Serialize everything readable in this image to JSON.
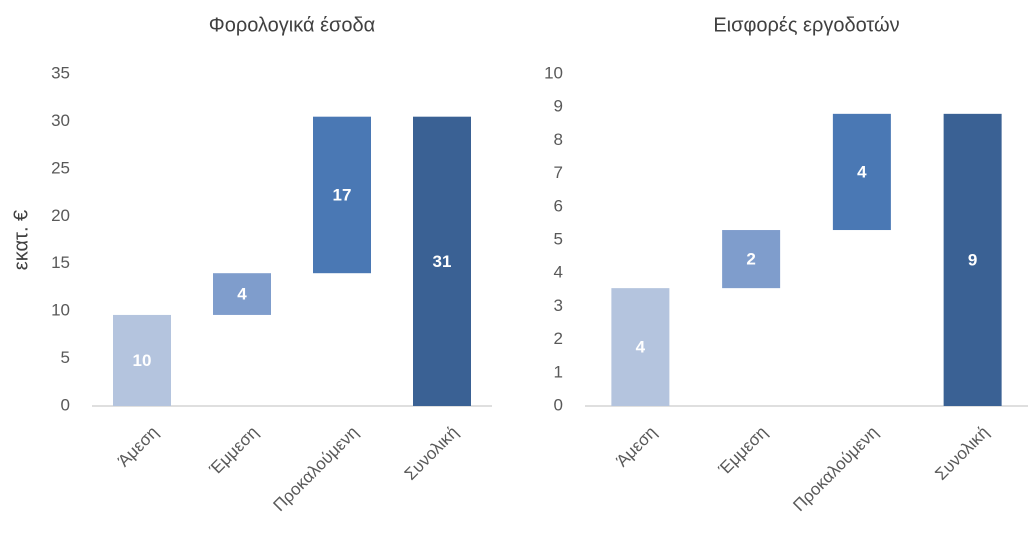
{
  "chart_data": [
    {
      "type": "waterfall",
      "title": "Φορολογικά έσοδα",
      "y_label": "εκατ. €",
      "categories": [
        "Άμεση",
        "Έμμεση",
        "Προκαλούμενη",
        "Συνολική"
      ],
      "values": [
        9.6,
        4.4,
        16.5,
        30.5
      ],
      "value_labels": [
        "10",
        "4",
        "17",
        "31"
      ],
      "colors": [
        "#b4c4de",
        "#7f9dcc",
        "#4a78b4",
        "#3a6194"
      ],
      "ylim": [
        0,
        35
      ],
      "yticks": [
        0,
        5,
        10,
        15,
        20,
        25,
        30,
        35
      ],
      "grid": false
    },
    {
      "type": "waterfall",
      "title": "Εισφορές εργοδοτών",
      "categories": [
        "Άμεση",
        "Έμμεση",
        "Προκαλούμενη",
        "Συνολική"
      ],
      "values": [
        3.55,
        1.75,
        3.5,
        8.8
      ],
      "value_labels": [
        "4",
        "2",
        "4",
        "9"
      ],
      "colors": [
        "#b4c4de",
        "#7f9dcc",
        "#4a78b4",
        "#3a6194"
      ],
      "ylim": [
        0,
        10
      ],
      "yticks": [
        0,
        1,
        2,
        3,
        4,
        5,
        6,
        7,
        8,
        9,
        10
      ],
      "grid": false
    }
  ]
}
